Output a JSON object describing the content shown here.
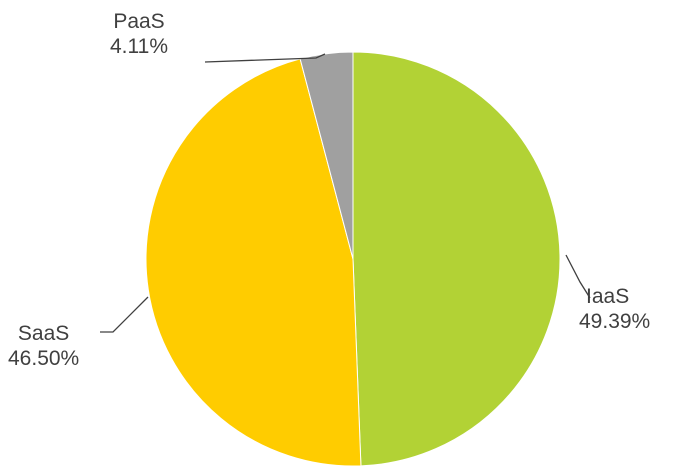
{
  "chart_data": {
    "type": "pie",
    "title": "",
    "legend": "none",
    "slices": [
      {
        "name": "IaaS",
        "value": 49.39,
        "label": "49.39%",
        "color": "#b2d235"
      },
      {
        "name": "SaaS",
        "value": 46.5,
        "label": "46.50%",
        "color": "#ffcc00"
      },
      {
        "name": "PaaS",
        "value": 4.11,
        "label": "4.11%",
        "color": "#a0a0a0"
      }
    ]
  }
}
